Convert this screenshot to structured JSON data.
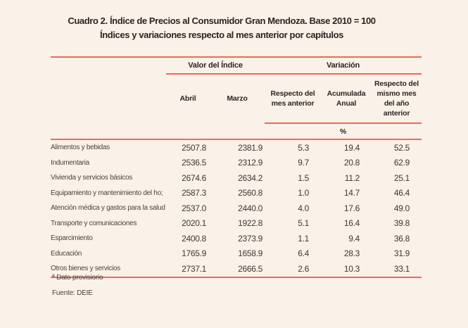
{
  "title": {
    "line1": "Cuadro 2. Índice de Precios al Consumidor Gran Mendoza. Base 2010 = 100",
    "line2": "Índices y variaciones respecto al mes anterior por capítulos"
  },
  "table": {
    "group_headers": {
      "valor": "Valor del Índice",
      "variacion": "Variación"
    },
    "columns": [
      "Abril",
      "Marzo",
      "Respecto del mes anterior",
      "Acumulada Anual",
      "Respecto del mismo mes del año anterior"
    ],
    "percent_label": "%",
    "rows": [
      {
        "label": "Alimentos y bebidas",
        "values": [
          "2507.8",
          "2381.9",
          "5.3",
          "19.4",
          "52.5"
        ]
      },
      {
        "label": "Indumentaria",
        "values": [
          "2536.5",
          "2312.9",
          "9.7",
          "20.8",
          "62.9"
        ]
      },
      {
        "label": "Vivienda y servicios básicos",
        "values": [
          "2674.6",
          "2634.2",
          "1.5",
          "11.2",
          "25.1"
        ]
      },
      {
        "label": "Equipamiento y mantenimiento del ho;",
        "values": [
          "2587.3",
          "2560.8",
          "1.0",
          "14.7",
          "46.4"
        ]
      },
      {
        "label": "Atención médica y gastos para la salud",
        "values": [
          "2537.0",
          "2440.0",
          "4.0",
          "17.6",
          "49.0"
        ]
      },
      {
        "label": "Transporte y comunicaciones",
        "values": [
          "2020.1",
          "1922.8",
          "5.1",
          "16.4",
          "39.8"
        ]
      },
      {
        "label": "Esparcimiento",
        "values": [
          "2400.8",
          "2373.9",
          "1.1",
          "9.4",
          "36.8"
        ]
      },
      {
        "label": "Educación",
        "values": [
          "1765.9",
          "1658.9",
          "6.4",
          "28.3",
          "31.9"
        ]
      },
      {
        "label": "Otros bienes y servicios",
        "values": [
          "2737.1",
          "2666.5",
          "2.6",
          "10.3",
          "33.1"
        ]
      }
    ]
  },
  "footnotes": {
    "provisional": "ª Dato provisiorio",
    "source": "Fuente: DEIE"
  },
  "colors": {
    "background": "#faf1e8",
    "rule_red": "#ee6a58",
    "text": "#2b2522"
  }
}
